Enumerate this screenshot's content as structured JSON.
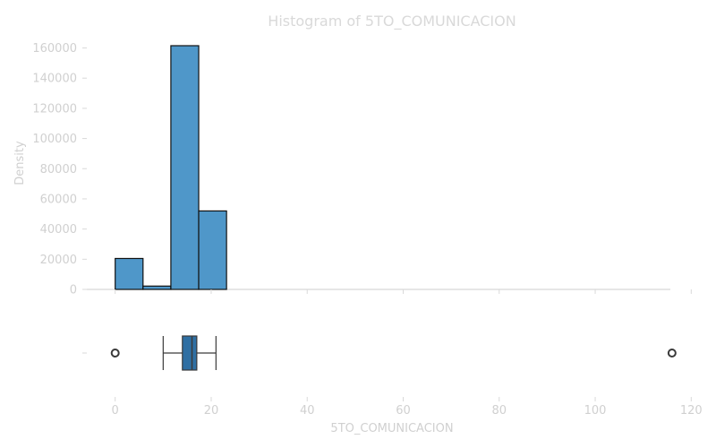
{
  "chart_data": [
    {
      "type": "bar",
      "title": "Histogram of 5TO_COMUNICACION",
      "xlabel": "",
      "ylabel": "Density",
      "ylim": [
        0,
        170000
      ],
      "yticks": [
        0,
        20000,
        40000,
        60000,
        80000,
        100000,
        120000,
        140000,
        160000
      ],
      "bins": [
        {
          "x_start": 0.0,
          "x_end": 5.8,
          "value": 20500
        },
        {
          "x_start": 5.8,
          "x_end": 11.6,
          "value": 2200
        },
        {
          "x_start": 11.6,
          "x_end": 17.4,
          "value": 161500
        },
        {
          "x_start": 17.4,
          "x_end": 23.2,
          "value": 52000
        }
      ],
      "bar_color": "#4f97c9",
      "edge_color": "#111111"
    },
    {
      "type": "box",
      "xlabel": "5TO_COMUNICACION",
      "xlim": [
        -4.5,
        120
      ],
      "xticks": [
        0,
        20,
        40,
        60,
        80,
        100,
        120
      ],
      "box": {
        "whisker_low": 10,
        "q1": 14,
        "median": 16,
        "q3": 17,
        "whisker_high": 21,
        "outliers": [
          0,
          116
        ]
      },
      "box_color": "#2f6fa3"
    }
  ]
}
